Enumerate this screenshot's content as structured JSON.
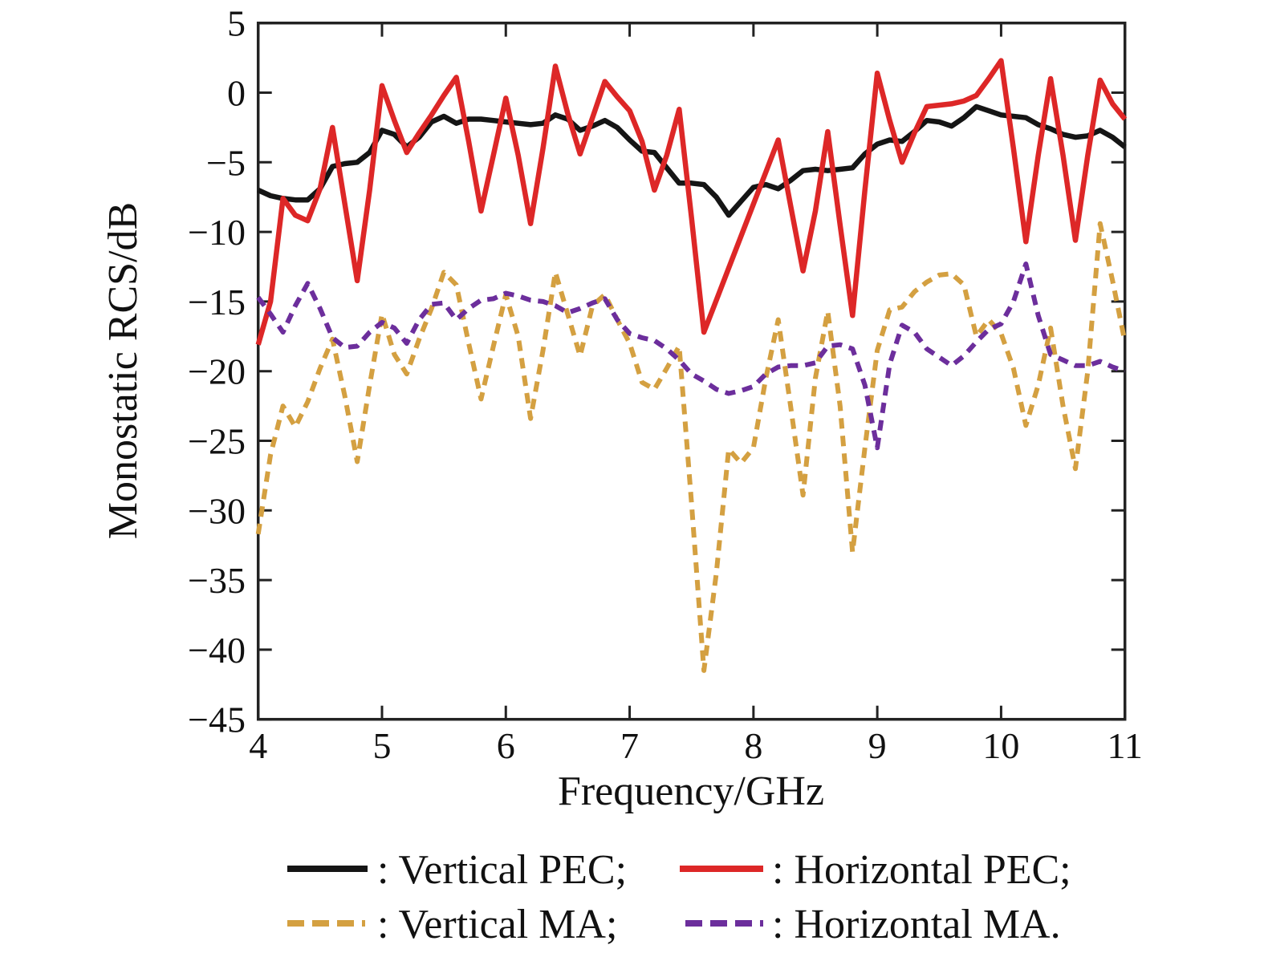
{
  "figure": {
    "xlabel": "Frequency/GHz",
    "ylabel": "Monostatic RCS/dB",
    "x_ticks": [
      4,
      5,
      6,
      7,
      8,
      9,
      10,
      11
    ],
    "y_ticks": [
      5,
      0,
      -5,
      -10,
      -15,
      -20,
      -25,
      -30,
      -35,
      -40,
      -45
    ]
  },
  "legend": {
    "items": [
      {
        "label": ": Vertical PEC;",
        "color": "#151515",
        "dashed": false
      },
      {
        "label": ": Horizontal PEC;",
        "color": "#DD2727",
        "dashed": false
      },
      {
        "label": ": Vertical MA;",
        "color": "#D4A041",
        "dashed": true
      },
      {
        "label": ": Horizontal MA.",
        "color": "#6C2E9C",
        "dashed": true
      }
    ]
  },
  "chart_data": {
    "type": "line",
    "title": "",
    "xlabel": "Frequency/GHz",
    "ylabel": "Monostatic RCS/dB",
    "xlim": [
      4,
      11
    ],
    "ylim": [
      -45,
      5
    ],
    "grid": false,
    "legend_position": "below",
    "x_start": 4.0,
    "x_step": 0.1,
    "series": [
      {
        "name": "Vertical PEC",
        "color": "#151515",
        "style": "solid",
        "values": [
          -7.0,
          -7.4,
          -7.6,
          -7.7,
          -7.7,
          -6.9,
          -5.3,
          -5.1,
          -5.0,
          -4.3,
          -2.7,
          -3.0,
          -3.9,
          -3.2,
          -2.1,
          -1.7,
          -2.2,
          -1.9,
          -1.9,
          -2.0,
          -2.1,
          -2.2,
          -2.3,
          -2.2,
          -1.6,
          -1.9,
          -2.7,
          -2.4,
          -2.0,
          -2.5,
          -3.4,
          -4.2,
          -4.3,
          -5.4,
          -6.5,
          -6.5,
          -6.6,
          -7.5,
          -8.8,
          -7.8,
          -6.8,
          -6.6,
          -6.9,
          -6.3,
          -5.6,
          -5.5,
          -5.6,
          -5.5,
          -5.4,
          -4.4,
          -3.7,
          -3.4,
          -3.5,
          -2.8,
          -2.0,
          -2.1,
          -2.4,
          -1.8,
          -1.0,
          -1.3,
          -1.6,
          -1.7,
          -1.8,
          -2.3,
          -2.6,
          -3.0,
          -3.2,
          -3.1,
          -2.7,
          -3.2,
          -3.9
        ]
      },
      {
        "name": "Horizontal PEC",
        "color": "#DD2727",
        "style": "solid",
        "values": [
          -18.1,
          -15.0,
          -7.6,
          -8.8,
          -9.2,
          -6.9,
          -2.5,
          -8.0,
          -13.5,
          -7.0,
          0.5,
          -2.0,
          -4.3,
          -2.9,
          -1.6,
          -0.2,
          1.1,
          -3.5,
          -8.5,
          -4.5,
          -0.4,
          -4.5,
          -9.4,
          -4.0,
          1.9,
          -1.5,
          -4.4,
          -1.8,
          0.8,
          -0.3,
          -1.3,
          -3.5,
          -7.0,
          -4.5,
          -1.2,
          -9.0,
          -17.2,
          -14.9,
          -12.6,
          -10.3,
          -8.0,
          -5.7,
          -3.4,
          -8.1,
          -12.8,
          -8.5,
          -2.8,
          -9.5,
          -16.0,
          -7.0,
          1.4,
          -2.0,
          -5.0,
          -2.9,
          -1.0,
          -0.9,
          -0.8,
          -0.6,
          -0.2,
          1.0,
          2.3,
          -4.0,
          -10.7,
          -4.5,
          1.0,
          -4.5,
          -10.6,
          -4.5,
          0.9,
          -0.8,
          -1.9
        ]
      },
      {
        "name": "Vertical MA",
        "color": "#D4A041",
        "style": "dashed",
        "values": [
          -31.7,
          -26.0,
          -22.5,
          -24.0,
          -22.2,
          -19.8,
          -17.7,
          -21.8,
          -26.5,
          -21.0,
          -15.9,
          -18.8,
          -20.2,
          -17.7,
          -15.5,
          -12.9,
          -13.8,
          -18.0,
          -22.0,
          -18.2,
          -14.5,
          -17.5,
          -23.4,
          -18.5,
          -12.9,
          -15.9,
          -18.9,
          -15.3,
          -14.5,
          -16.3,
          -18.0,
          -20.8,
          -21.3,
          -19.8,
          -18.2,
          -29.5,
          -41.5,
          -34.5,
          -25.6,
          -26.6,
          -25.5,
          -20.5,
          -16.3,
          -22.5,
          -28.9,
          -20.5,
          -15.7,
          -22.5,
          -33.0,
          -25.5,
          -18.5,
          -15.6,
          -15.4,
          -14.3,
          -13.6,
          -13.1,
          -13.0,
          -13.8,
          -17.5,
          -16.3,
          -17.3,
          -19.8,
          -23.9,
          -21.0,
          -16.9,
          -22.5,
          -27.0,
          -20.0,
          -9.4,
          -13.5,
          -17.9
        ]
      },
      {
        "name": "Horizontal MA",
        "color": "#6C2E9C",
        "style": "dashed",
        "values": [
          -14.7,
          -15.9,
          -17.2,
          -15.3,
          -13.7,
          -15.5,
          -17.6,
          -18.3,
          -18.2,
          -17.2,
          -16.5,
          -16.9,
          -18.0,
          -16.3,
          -15.2,
          -15.1,
          -16.3,
          -15.5,
          -14.9,
          -14.8,
          -14.4,
          -14.6,
          -14.9,
          -15.0,
          -15.3,
          -15.8,
          -15.5,
          -15.1,
          -14.8,
          -16.3,
          -17.3,
          -17.6,
          -17.8,
          -18.4,
          -19.2,
          -20.2,
          -20.7,
          -21.3,
          -21.6,
          -21.4,
          -21.1,
          -20.2,
          -19.7,
          -19.6,
          -19.6,
          -19.4,
          -18.2,
          -18.1,
          -18.4,
          -21.0,
          -25.5,
          -19.5,
          -16.7,
          -17.2,
          -18.4,
          -19.0,
          -19.6,
          -18.9,
          -17.9,
          -17.0,
          -16.6,
          -15.0,
          -12.3,
          -16.0,
          -18.8,
          -19.2,
          -19.6,
          -19.6,
          -19.3,
          -19.7,
          -20.0
        ]
      }
    ]
  }
}
